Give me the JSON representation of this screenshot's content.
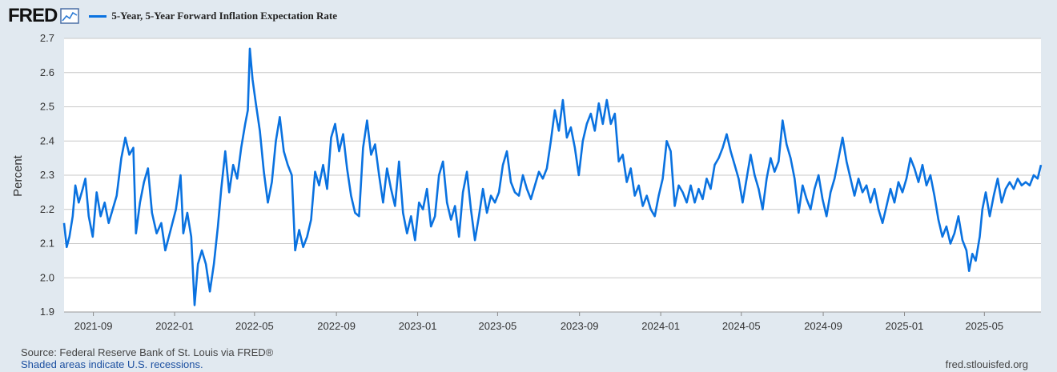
{
  "header": {
    "logo_text": "FRED",
    "logo_icon": "chart-line-icon",
    "legend_label": "5-Year, 5-Year Forward Inflation Expectation Rate",
    "legend_color": "#0a72e0"
  },
  "footer": {
    "source": "Source: Federal Reserve Bank of St. Louis via FRED®",
    "recessions": "Shaded areas indicate U.S. recessions.",
    "url": "fred.stlouisfed.org"
  },
  "chart_data": {
    "type": "line",
    "title": "",
    "xlabel": "",
    "ylabel": "Percent",
    "ylim": [
      1.9,
      2.7
    ],
    "yticks": [
      "1.9",
      "2.0",
      "2.1",
      "2.2",
      "2.3",
      "2.4",
      "2.5",
      "2.6",
      "2.7"
    ],
    "xlim": [
      "2021-07-19",
      "2025-07-25"
    ],
    "xticks": [
      "2021-09",
      "2022-01",
      "2022-05",
      "2022-09",
      "2023-01",
      "2023-05",
      "2023-09",
      "2024-01",
      "2024-05",
      "2024-09",
      "2025-01",
      "2025-05"
    ],
    "grid": true,
    "legend": "top-left",
    "series": [
      {
        "name": "5-Year, 5-Year Forward Inflation Expectation Rate",
        "color": "#0a72e0",
        "points": [
          [
            "2021-07-19",
            2.16
          ],
          [
            "2021-07-23",
            2.09
          ],
          [
            "2021-07-27",
            2.12
          ],
          [
            "2021-08-01",
            2.18
          ],
          [
            "2021-08-05",
            2.27
          ],
          [
            "2021-08-10",
            2.22
          ],
          [
            "2021-08-16",
            2.26
          ],
          [
            "2021-08-20",
            2.29
          ],
          [
            "2021-08-25",
            2.18
          ],
          [
            "2021-08-31",
            2.12
          ],
          [
            "2021-09-06",
            2.25
          ],
          [
            "2021-09-12",
            2.18
          ],
          [
            "2021-09-18",
            2.22
          ],
          [
            "2021-09-24",
            2.16
          ],
          [
            "2021-09-30",
            2.2
          ],
          [
            "2021-10-06",
            2.24
          ],
          [
            "2021-10-13",
            2.35
          ],
          [
            "2021-10-19",
            2.41
          ],
          [
            "2021-10-25",
            2.36
          ],
          [
            "2021-10-31",
            2.38
          ],
          [
            "2021-11-04",
            2.13
          ],
          [
            "2021-11-10",
            2.22
          ],
          [
            "2021-11-16",
            2.28
          ],
          [
            "2021-11-22",
            2.32
          ],
          [
            "2021-11-28",
            2.19
          ],
          [
            "2021-12-05",
            2.13
          ],
          [
            "2021-12-12",
            2.16
          ],
          [
            "2021-12-18",
            2.08
          ],
          [
            "2021-12-26",
            2.14
          ],
          [
            "2022-01-03",
            2.2
          ],
          [
            "2022-01-10",
            2.3
          ],
          [
            "2022-01-14",
            2.13
          ],
          [
            "2022-01-20",
            2.19
          ],
          [
            "2022-01-26",
            2.12
          ],
          [
            "2022-01-31",
            1.92
          ],
          [
            "2022-02-05",
            2.04
          ],
          [
            "2022-02-11",
            2.08
          ],
          [
            "2022-02-17",
            2.04
          ],
          [
            "2022-02-23",
            1.96
          ],
          [
            "2022-03-01",
            2.04
          ],
          [
            "2022-03-07",
            2.15
          ],
          [
            "2022-03-12",
            2.26
          ],
          [
            "2022-03-18",
            2.37
          ],
          [
            "2022-03-24",
            2.25
          ],
          [
            "2022-03-30",
            2.33
          ],
          [
            "2022-04-05",
            2.29
          ],
          [
            "2022-04-11",
            2.38
          ],
          [
            "2022-04-17",
            2.45
          ],
          [
            "2022-04-21",
            2.49
          ],
          [
            "2022-04-24",
            2.67
          ],
          [
            "2022-04-28",
            2.58
          ],
          [
            "2022-05-03",
            2.51
          ],
          [
            "2022-05-09",
            2.43
          ],
          [
            "2022-05-15",
            2.31
          ],
          [
            "2022-05-21",
            2.22
          ],
          [
            "2022-05-27",
            2.28
          ],
          [
            "2022-06-02",
            2.4
          ],
          [
            "2022-06-08",
            2.47
          ],
          [
            "2022-06-14",
            2.37
          ],
          [
            "2022-06-20",
            2.33
          ],
          [
            "2022-06-26",
            2.3
          ],
          [
            "2022-07-01",
            2.08
          ],
          [
            "2022-07-07",
            2.14
          ],
          [
            "2022-07-13",
            2.09
          ],
          [
            "2022-07-19",
            2.12
          ],
          [
            "2022-07-25",
            2.17
          ],
          [
            "2022-07-31",
            2.31
          ],
          [
            "2022-08-06",
            2.27
          ],
          [
            "2022-08-12",
            2.33
          ],
          [
            "2022-08-18",
            2.26
          ],
          [
            "2022-08-24",
            2.41
          ],
          [
            "2022-08-30",
            2.45
          ],
          [
            "2022-09-05",
            2.37
          ],
          [
            "2022-09-11",
            2.42
          ],
          [
            "2022-09-17",
            2.32
          ],
          [
            "2022-09-23",
            2.24
          ],
          [
            "2022-09-29",
            2.19
          ],
          [
            "2022-10-05",
            2.18
          ],
          [
            "2022-10-11",
            2.38
          ],
          [
            "2022-10-17",
            2.46
          ],
          [
            "2022-10-23",
            2.36
          ],
          [
            "2022-10-29",
            2.39
          ],
          [
            "2022-11-04",
            2.3
          ],
          [
            "2022-11-10",
            2.22
          ],
          [
            "2022-11-16",
            2.32
          ],
          [
            "2022-11-22",
            2.26
          ],
          [
            "2022-11-28",
            2.21
          ],
          [
            "2022-12-04",
            2.34
          ],
          [
            "2022-12-10",
            2.19
          ],
          [
            "2022-12-16",
            2.13
          ],
          [
            "2022-12-22",
            2.18
          ],
          [
            "2022-12-28",
            2.11
          ],
          [
            "2023-01-03",
            2.22
          ],
          [
            "2023-01-09",
            2.2
          ],
          [
            "2023-01-15",
            2.26
          ],
          [
            "2023-01-21",
            2.15
          ],
          [
            "2023-01-27",
            2.18
          ],
          [
            "2023-02-02",
            2.3
          ],
          [
            "2023-02-08",
            2.34
          ],
          [
            "2023-02-14",
            2.22
          ],
          [
            "2023-02-20",
            2.17
          ],
          [
            "2023-02-26",
            2.21
          ],
          [
            "2023-03-04",
            2.12
          ],
          [
            "2023-03-10",
            2.25
          ],
          [
            "2023-03-16",
            2.31
          ],
          [
            "2023-03-22",
            2.2
          ],
          [
            "2023-03-28",
            2.11
          ],
          [
            "2023-04-03",
            2.18
          ],
          [
            "2023-04-09",
            2.26
          ],
          [
            "2023-04-15",
            2.19
          ],
          [
            "2023-04-21",
            2.24
          ],
          [
            "2023-04-27",
            2.22
          ],
          [
            "2023-05-03",
            2.25
          ],
          [
            "2023-05-09",
            2.33
          ],
          [
            "2023-05-15",
            2.37
          ],
          [
            "2023-05-21",
            2.28
          ],
          [
            "2023-05-27",
            2.25
          ],
          [
            "2023-06-02",
            2.24
          ],
          [
            "2023-06-08",
            2.3
          ],
          [
            "2023-06-14",
            2.26
          ],
          [
            "2023-06-20",
            2.23
          ],
          [
            "2023-06-26",
            2.27
          ],
          [
            "2023-07-02",
            2.31
          ],
          [
            "2023-07-08",
            2.29
          ],
          [
            "2023-07-14",
            2.32
          ],
          [
            "2023-07-20",
            2.4
          ],
          [
            "2023-07-26",
            2.49
          ],
          [
            "2023-08-01",
            2.43
          ],
          [
            "2023-08-07",
            2.52
          ],
          [
            "2023-08-13",
            2.41
          ],
          [
            "2023-08-19",
            2.44
          ],
          [
            "2023-08-25",
            2.38
          ],
          [
            "2023-08-31",
            2.3
          ],
          [
            "2023-09-06",
            2.4
          ],
          [
            "2023-09-12",
            2.45
          ],
          [
            "2023-09-18",
            2.48
          ],
          [
            "2023-09-24",
            2.43
          ],
          [
            "2023-09-30",
            2.51
          ],
          [
            "2023-10-06",
            2.45
          ],
          [
            "2023-10-12",
            2.52
          ],
          [
            "2023-10-18",
            2.45
          ],
          [
            "2023-10-24",
            2.48
          ],
          [
            "2023-10-30",
            2.34
          ],
          [
            "2023-11-05",
            2.36
          ],
          [
            "2023-11-11",
            2.28
          ],
          [
            "2023-11-17",
            2.32
          ],
          [
            "2023-11-23",
            2.24
          ],
          [
            "2023-11-29",
            2.27
          ],
          [
            "2023-12-05",
            2.21
          ],
          [
            "2023-12-11",
            2.24
          ],
          [
            "2023-12-17",
            2.2
          ],
          [
            "2023-12-23",
            2.18
          ],
          [
            "2023-12-29",
            2.24
          ],
          [
            "2024-01-04",
            2.29
          ],
          [
            "2024-01-10",
            2.4
          ],
          [
            "2024-01-16",
            2.37
          ],
          [
            "2024-01-22",
            2.21
          ],
          [
            "2024-01-28",
            2.27
          ],
          [
            "2024-02-03",
            2.25
          ],
          [
            "2024-02-09",
            2.22
          ],
          [
            "2024-02-15",
            2.27
          ],
          [
            "2024-02-21",
            2.22
          ],
          [
            "2024-02-27",
            2.26
          ],
          [
            "2024-03-04",
            2.23
          ],
          [
            "2024-03-10",
            2.29
          ],
          [
            "2024-03-16",
            2.26
          ],
          [
            "2024-03-22",
            2.33
          ],
          [
            "2024-03-28",
            2.35
          ],
          [
            "2024-04-03",
            2.38
          ],
          [
            "2024-04-09",
            2.42
          ],
          [
            "2024-04-15",
            2.37
          ],
          [
            "2024-04-21",
            2.33
          ],
          [
            "2024-04-27",
            2.29
          ],
          [
            "2024-05-03",
            2.22
          ],
          [
            "2024-05-09",
            2.29
          ],
          [
            "2024-05-15",
            2.36
          ],
          [
            "2024-05-21",
            2.3
          ],
          [
            "2024-05-27",
            2.26
          ],
          [
            "2024-06-02",
            2.2
          ],
          [
            "2024-06-08",
            2.29
          ],
          [
            "2024-06-14",
            2.35
          ],
          [
            "2024-06-20",
            2.31
          ],
          [
            "2024-06-26",
            2.34
          ],
          [
            "2024-07-02",
            2.46
          ],
          [
            "2024-07-08",
            2.39
          ],
          [
            "2024-07-14",
            2.35
          ],
          [
            "2024-07-20",
            2.29
          ],
          [
            "2024-07-26",
            2.19
          ],
          [
            "2024-08-01",
            2.27
          ],
          [
            "2024-08-07",
            2.23
          ],
          [
            "2024-08-13",
            2.2
          ],
          [
            "2024-08-19",
            2.26
          ],
          [
            "2024-08-25",
            2.3
          ],
          [
            "2024-08-31",
            2.23
          ],
          [
            "2024-09-06",
            2.18
          ],
          [
            "2024-09-12",
            2.25
          ],
          [
            "2024-09-18",
            2.29
          ],
          [
            "2024-09-24",
            2.35
          ],
          [
            "2024-09-30",
            2.41
          ],
          [
            "2024-10-06",
            2.34
          ],
          [
            "2024-10-12",
            2.29
          ],
          [
            "2024-10-18",
            2.24
          ],
          [
            "2024-10-24",
            2.29
          ],
          [
            "2024-10-30",
            2.25
          ],
          [
            "2024-11-05",
            2.27
          ],
          [
            "2024-11-11",
            2.22
          ],
          [
            "2024-11-17",
            2.26
          ],
          [
            "2024-11-23",
            2.2
          ],
          [
            "2024-11-29",
            2.16
          ],
          [
            "2024-12-05",
            2.21
          ],
          [
            "2024-12-11",
            2.26
          ],
          [
            "2024-12-17",
            2.22
          ],
          [
            "2024-12-23",
            2.28
          ],
          [
            "2024-12-29",
            2.25
          ],
          [
            "2025-01-04",
            2.29
          ],
          [
            "2025-01-10",
            2.35
          ],
          [
            "2025-01-16",
            2.32
          ],
          [
            "2025-01-22",
            2.28
          ],
          [
            "2025-01-28",
            2.33
          ],
          [
            "2025-02-03",
            2.27
          ],
          [
            "2025-02-09",
            2.3
          ],
          [
            "2025-02-15",
            2.24
          ],
          [
            "2025-02-21",
            2.17
          ],
          [
            "2025-02-27",
            2.12
          ],
          [
            "2025-03-05",
            2.15
          ],
          [
            "2025-03-11",
            2.1
          ],
          [
            "2025-03-17",
            2.13
          ],
          [
            "2025-03-23",
            2.18
          ],
          [
            "2025-03-29",
            2.11
          ],
          [
            "2025-04-04",
            2.08
          ],
          [
            "2025-04-08",
            2.02
          ],
          [
            "2025-04-13",
            2.07
          ],
          [
            "2025-04-18",
            2.05
          ],
          [
            "2025-04-24",
            2.12
          ],
          [
            "2025-04-28",
            2.2
          ],
          [
            "2025-05-03",
            2.25
          ],
          [
            "2025-05-09",
            2.18
          ],
          [
            "2025-05-15",
            2.24
          ],
          [
            "2025-05-21",
            2.29
          ],
          [
            "2025-05-27",
            2.22
          ],
          [
            "2025-06-02",
            2.26
          ],
          [
            "2025-06-08",
            2.28
          ],
          [
            "2025-06-14",
            2.26
          ],
          [
            "2025-06-20",
            2.29
          ],
          [
            "2025-06-26",
            2.27
          ],
          [
            "2025-07-02",
            2.28
          ],
          [
            "2025-07-08",
            2.27
          ],
          [
            "2025-07-14",
            2.3
          ],
          [
            "2025-07-20",
            2.29
          ],
          [
            "2025-07-25",
            2.33
          ]
        ]
      }
    ]
  }
}
